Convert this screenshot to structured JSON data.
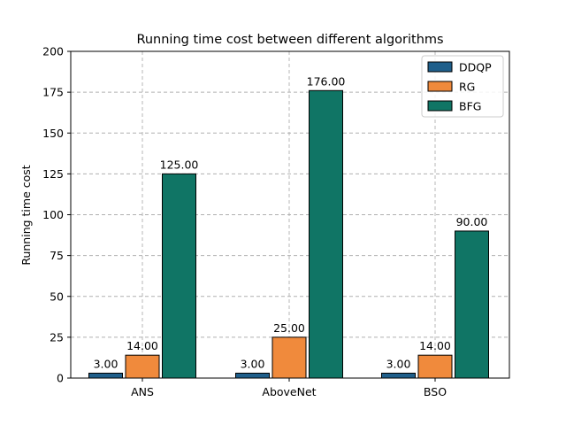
{
  "chart_data": {
    "type": "bar",
    "title": "Running time cost between different algorithms",
    "xlabel": "",
    "ylabel": "Running time cost",
    "categories": [
      "ANS",
      "AboveNet",
      "BSO"
    ],
    "series": [
      {
        "name": "DDQP",
        "values": [
          3.0,
          3.0,
          3.0
        ],
        "color": "#1f5f8b"
      },
      {
        "name": "RG",
        "values": [
          14.0,
          25.0,
          14.0
        ],
        "color": "#f08a3c"
      },
      {
        "name": "BFG",
        "values": [
          125.0,
          176.0,
          90.0
        ],
        "color": "#107565"
      }
    ],
    "data_labels": [
      [
        "3.00",
        "3.00",
        "3.00"
      ],
      [
        "14.00",
        "25.00",
        "14.00"
      ],
      [
        "125.00",
        "176.00",
        "90.00"
      ]
    ],
    "ylim": [
      0,
      200
    ],
    "yticks": [
      0,
      25,
      50,
      75,
      100,
      125,
      150,
      175,
      200
    ],
    "ytick_labels": [
      "0",
      "25",
      "50",
      "75",
      "100",
      "125",
      "150",
      "175",
      "200"
    ],
    "grid": true,
    "legend_position": "top-right"
  }
}
